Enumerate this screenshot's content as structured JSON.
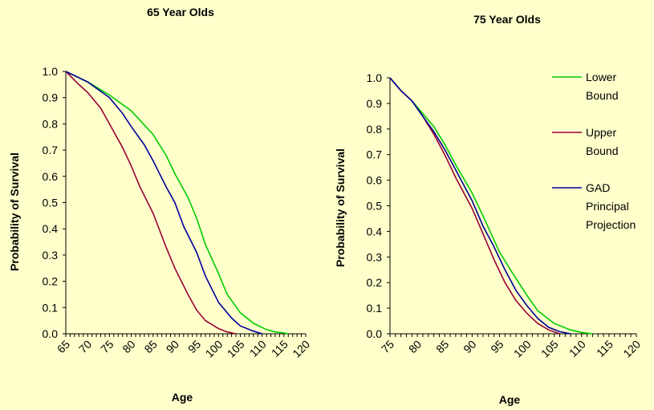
{
  "colors": {
    "background": "#ffffcc",
    "lower_bound": "#00cc00",
    "upper_bound": "#990033",
    "gad": "#000099"
  },
  "legend": {
    "items": [
      {
        "lines": [
          "Lower",
          "Bound"
        ],
        "color": "#00cc00"
      },
      {
        "lines": [
          "Upper",
          "Bound"
        ],
        "color": "#990033"
      },
      {
        "lines": [
          "GAD",
          "Principal",
          "Projection"
        ],
        "color": "#000099"
      }
    ]
  },
  "chart_data": [
    {
      "type": "line",
      "title": "65 Year Olds",
      "xlabel": "Age",
      "ylabel": "Probability of Survival",
      "xlim": [
        65,
        120
      ],
      "ylim": [
        0,
        1
      ],
      "x_ticks": [
        65,
        70,
        75,
        80,
        85,
        90,
        95,
        100,
        105,
        110,
        115,
        120
      ],
      "y_ticks": [
        "0.0",
        "0.1",
        "0.2",
        "0.3",
        "0.4",
        "0.5",
        "0.6",
        "0.7",
        "0.8",
        "0.9",
        "1.0"
      ],
      "grid": false,
      "series": [
        {
          "name": "Lower Bound",
          "color": "#00cc00",
          "points": [
            [
              65,
              1.0
            ],
            [
              70,
              0.96
            ],
            [
              75,
              0.91
            ],
            [
              80,
              0.85
            ],
            [
              85,
              0.76
            ],
            [
              88,
              0.68
            ],
            [
              90,
              0.61
            ],
            [
              93,
              0.52
            ],
            [
              95,
              0.44
            ],
            [
              97,
              0.34
            ],
            [
              100,
              0.23
            ],
            [
              102,
              0.15
            ],
            [
              105,
              0.08
            ],
            [
              108,
              0.04
            ],
            [
              111,
              0.016
            ],
            [
              113,
              0.007
            ],
            [
              115,
              0.003
            ],
            [
              116,
              0.0
            ]
          ]
        },
        {
          "name": "Upper Bound",
          "color": "#990033",
          "points": [
            [
              65,
              1.0
            ],
            [
              68,
              0.95
            ],
            [
              70,
              0.92
            ],
            [
              73,
              0.86
            ],
            [
              75,
              0.8
            ],
            [
              78,
              0.71
            ],
            [
              80,
              0.64
            ],
            [
              82,
              0.56
            ],
            [
              85,
              0.46
            ],
            [
              88,
              0.33
            ],
            [
              90,
              0.25
            ],
            [
              93,
              0.15
            ],
            [
              95,
              0.09
            ],
            [
              97,
              0.05
            ],
            [
              100,
              0.02
            ],
            [
              102,
              0.007
            ],
            [
              104,
              0.0
            ]
          ]
        },
        {
          "name": "GAD Principal Projection",
          "color": "#000099",
          "points": [
            [
              65,
              1.0
            ],
            [
              70,
              0.96
            ],
            [
              75,
              0.9
            ],
            [
              78,
              0.84
            ],
            [
              80,
              0.79
            ],
            [
              83,
              0.72
            ],
            [
              85,
              0.66
            ],
            [
              88,
              0.56
            ],
            [
              90,
              0.5
            ],
            [
              92,
              0.41
            ],
            [
              95,
              0.31
            ],
            [
              97,
              0.22
            ],
            [
              100,
              0.12
            ],
            [
              103,
              0.06
            ],
            [
              105,
              0.03
            ],
            [
              108,
              0.01
            ],
            [
              110,
              0.0
            ]
          ]
        }
      ]
    },
    {
      "type": "line",
      "title": "75 Year Olds",
      "xlabel": "Age",
      "ylabel": "Probability of Survival",
      "xlim": [
        75,
        120
      ],
      "ylim": [
        0,
        1
      ],
      "x_ticks": [
        75,
        80,
        85,
        90,
        95,
        100,
        105,
        110,
        115,
        120
      ],
      "y_ticks": [
        "0.0",
        "0.1",
        "0.2",
        "0.3",
        "0.4",
        "0.5",
        "0.6",
        "0.7",
        "0.8",
        "0.9",
        "1.0"
      ],
      "grid": false,
      "legend_position": "right",
      "series": [
        {
          "name": "Lower Bound",
          "color": "#00cc00",
          "points": [
            [
              75,
              1.0
            ],
            [
              77,
              0.95
            ],
            [
              79,
              0.91
            ],
            [
              81,
              0.86
            ],
            [
              83,
              0.81
            ],
            [
              85,
              0.74
            ],
            [
              87,
              0.66
            ],
            [
              90,
              0.55
            ],
            [
              92,
              0.46
            ],
            [
              95,
              0.32
            ],
            [
              97,
              0.25
            ],
            [
              100,
              0.15
            ],
            [
              102,
              0.09
            ],
            [
              105,
              0.04
            ],
            [
              108,
              0.015
            ],
            [
              110,
              0.005
            ],
            [
              112,
              0.0
            ]
          ]
        },
        {
          "name": "Upper Bound",
          "color": "#990033",
          "points": [
            [
              75,
              1.0
            ],
            [
              77,
              0.95
            ],
            [
              79,
              0.91
            ],
            [
              81,
              0.85
            ],
            [
              83,
              0.78
            ],
            [
              85,
              0.7
            ],
            [
              87,
              0.61
            ],
            [
              90,
              0.49
            ],
            [
              92,
              0.39
            ],
            [
              94,
              0.29
            ],
            [
              96,
              0.2
            ],
            [
              98,
              0.13
            ],
            [
              100,
              0.08
            ],
            [
              102,
              0.04
            ],
            [
              104,
              0.015
            ],
            [
              106,
              0.0
            ]
          ]
        },
        {
          "name": "GAD Principal Projection",
          "color": "#000099",
          "points": [
            [
              75,
              1.0
            ],
            [
              77,
              0.95
            ],
            [
              79,
              0.91
            ],
            [
              81,
              0.85
            ],
            [
              83,
              0.79
            ],
            [
              85,
              0.72
            ],
            [
              87,
              0.64
            ],
            [
              90,
              0.52
            ],
            [
              92,
              0.42
            ],
            [
              94,
              0.34
            ],
            [
              96,
              0.25
            ],
            [
              98,
              0.17
            ],
            [
              100,
              0.11
            ],
            [
              102,
              0.06
            ],
            [
              104,
              0.025
            ],
            [
              106,
              0.008
            ],
            [
              108,
              0.0
            ]
          ]
        }
      ]
    }
  ]
}
